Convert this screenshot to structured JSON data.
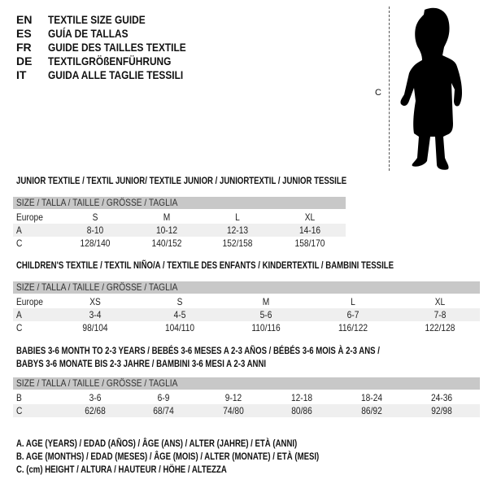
{
  "titles": [
    {
      "code": "EN",
      "text": "TEXTILE SIZE GUIDE"
    },
    {
      "code": "ES",
      "text": "GUÍA DE TALLAS"
    },
    {
      "code": "FR",
      "text": "GUIDE DES TAILLES TEXTILE"
    },
    {
      "code": "DE",
      "text": "TEXTILGRÖßENFÜHRUNG"
    },
    {
      "code": "IT",
      "text": "GUIDA ALLE TAGLIE TESSILI"
    }
  ],
  "figure": {
    "measure_label": "C",
    "icon": "child-silhouette"
  },
  "size_header": "SIZE / TALLA / TAILLE / GRÖSSE / TAGLIA",
  "junior": {
    "heading": "JUNIOR TEXTILE / TEXTIL JUNIOR/ TEXTILE JUNIOR / JUNIORTEXTIL / JUNIOR TESSILE",
    "rows": [
      {
        "label": "Europe",
        "values": [
          "S",
          "M",
          "L",
          "XL"
        ]
      },
      {
        "label": "A",
        "values": [
          "8-10",
          "10-12",
          "12-13",
          "14-16"
        ]
      },
      {
        "label": "C",
        "values": [
          "128/140",
          "140/152",
          "152/158",
          "158/170"
        ]
      }
    ]
  },
  "children": {
    "heading": "CHILDREN'S TEXTILE / TEXTIL NIÑO/A / TEXTILE DES ENFANTS / KINDERTEXTIL / BAMBINI TESSILE",
    "rows": [
      {
        "label": "Europe",
        "values": [
          "XS",
          "S",
          "M",
          "L",
          "XL"
        ]
      },
      {
        "label": "A",
        "values": [
          "3-4",
          "4-5",
          "5-6",
          "6-7",
          "7-8"
        ]
      },
      {
        "label": "C",
        "values": [
          "98/104",
          "104/110",
          "110/116",
          "116/122",
          "122/128"
        ]
      }
    ]
  },
  "babies": {
    "heading1": "BABIES 3-6 MONTH TO 2-3 YEARS / BEBÉS 3-6 MESES A 2-3 AÑOS / BÉBÉS 3-6 MOIS À 2-3 ANS /",
    "heading2": "BABYS 3-6 MONATE BIS 2-3 JAHRE / BAMBINI 3-6 MESI A 2-3 ANNI",
    "rows": [
      {
        "label": "B",
        "values": [
          "3-6",
          "6-9",
          "9-12",
          "12-18",
          "18-24",
          "24-36"
        ]
      },
      {
        "label": "C",
        "values": [
          "62/68",
          "68/74",
          "74/80",
          "80/86",
          "86/92",
          "92/98"
        ]
      }
    ]
  },
  "legend": [
    "A. AGE (YEARS) / EDAD (AÑOS) / ÂGE (ANS) / ALTER (JAHRE) / ETÀ (ANNI)",
    "B. AGE (MONTHS) / EDAD (MESES) / ÂGE (MOIS) / ALTER (MONATE) / ETÀ (MESI)",
    "C. (cm) HEIGHT / ALTURA / HAUTEUR / HÖHE / ALTEZZA"
  ]
}
